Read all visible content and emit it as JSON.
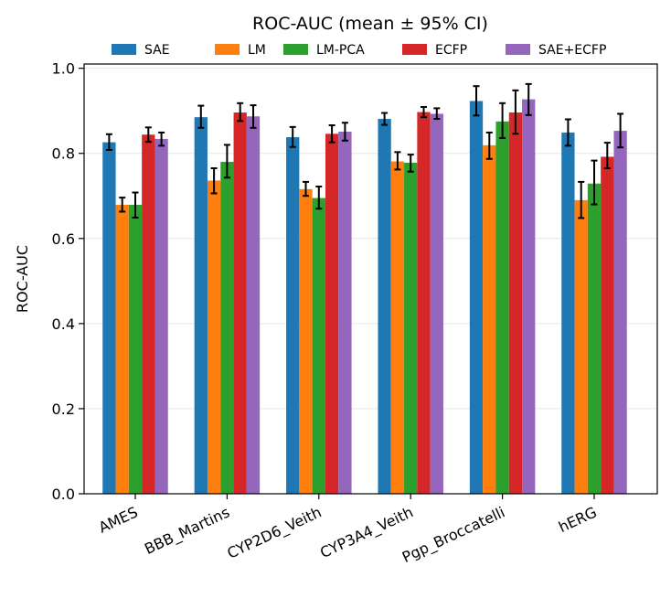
{
  "chart_data": {
    "type": "bar",
    "title": "ROC-AUC (mean ± 95% CI)",
    "xlabel": "",
    "ylabel": "ROC-AUC",
    "ylim": [
      0.0,
      1.01
    ],
    "yticks": [
      "0.0",
      "0.2",
      "0.4",
      "0.6",
      "0.8",
      "1.0"
    ],
    "ytick_values": [
      0.0,
      0.2,
      0.4,
      0.6,
      0.8,
      1.0
    ],
    "grid": "horizontal",
    "legend_position": "top-center",
    "categories": [
      "AMES",
      "BBB_Martins",
      "CYP2D6_Veith",
      "CYP3A4_Veith",
      "Pgp_Broccatelli",
      "hERG"
    ],
    "series": [
      {
        "name": "SAE",
        "color": "#1f77b4",
        "values": [
          0.826,
          0.885,
          0.838,
          0.881,
          0.923,
          0.849
        ],
        "ci_low": [
          0.808,
          0.86,
          0.815,
          0.867,
          0.889,
          0.818
        ],
        "ci_high": [
          0.845,
          0.912,
          0.862,
          0.895,
          0.958,
          0.88
        ]
      },
      {
        "name": "LM",
        "color": "#ff7f0e",
        "values": [
          0.679,
          0.736,
          0.716,
          0.781,
          0.819,
          0.69
        ],
        "ci_low": [
          0.663,
          0.706,
          0.7,
          0.762,
          0.787,
          0.648
        ],
        "ci_high": [
          0.696,
          0.765,
          0.733,
          0.803,
          0.849,
          0.733
        ]
      },
      {
        "name": "LM-PCA",
        "color": "#2ca02c",
        "values": [
          0.679,
          0.78,
          0.695,
          0.778,
          0.875,
          0.729
        ],
        "ci_low": [
          0.649,
          0.743,
          0.67,
          0.757,
          0.836,
          0.68
        ],
        "ci_high": [
          0.708,
          0.82,
          0.722,
          0.797,
          0.918,
          0.783
        ]
      },
      {
        "name": "ECFP",
        "color": "#d62728",
        "values": [
          0.844,
          0.896,
          0.846,
          0.897,
          0.896,
          0.792
        ],
        "ci_low": [
          0.827,
          0.876,
          0.826,
          0.885,
          0.846,
          0.765
        ],
        "ci_high": [
          0.861,
          0.918,
          0.866,
          0.909,
          0.948,
          0.825
        ]
      },
      {
        "name": "SAE+ECFP",
        "color": "#9467bd",
        "values": [
          0.834,
          0.887,
          0.851,
          0.893,
          0.927,
          0.853
        ],
        "ci_low": [
          0.818,
          0.86,
          0.83,
          0.881,
          0.89,
          0.814
        ],
        "ci_high": [
          0.849,
          0.913,
          0.872,
          0.906,
          0.963,
          0.893
        ]
      }
    ]
  }
}
